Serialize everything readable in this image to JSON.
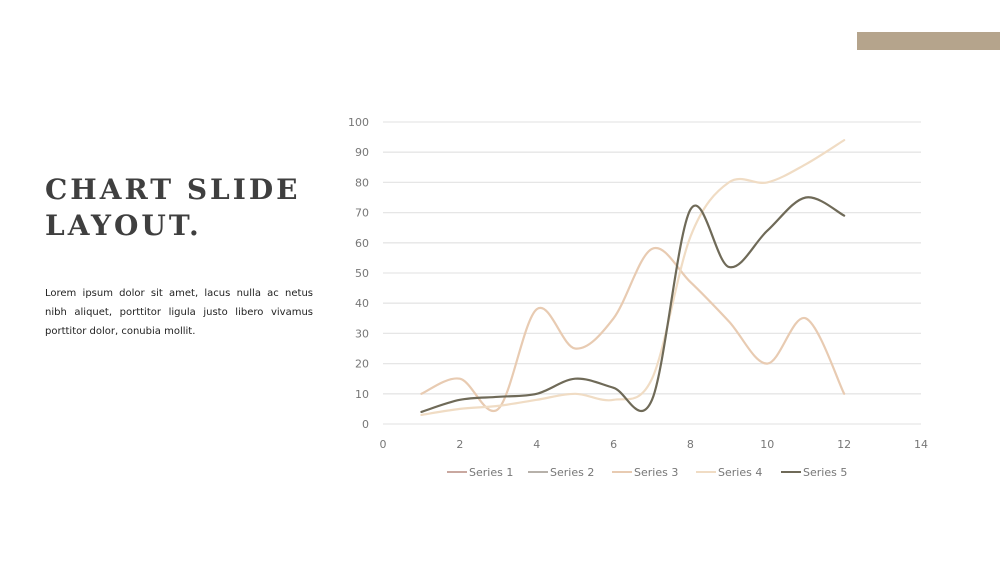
{
  "slide": {
    "title_line1": "CHART SLIDE",
    "title_line2": "LAYOUT.",
    "body": "Lorem ipsum dolor sit amet, lacus nulla ac netus nibh aliquet, porttitor ligula justo libero vivamus porttitor dolor, conubia mollit.",
    "accent_color": "#b5a48c"
  },
  "chart_data": {
    "type": "line",
    "smooth": true,
    "title": "",
    "xlabel": "",
    "ylabel": "",
    "xlim": [
      0,
      14
    ],
    "ylim": [
      0,
      100
    ],
    "xticks": [
      0,
      2,
      4,
      6,
      8,
      10,
      12,
      14
    ],
    "yticks": [
      0,
      10,
      20,
      30,
      40,
      50,
      60,
      70,
      80,
      90,
      100
    ],
    "grid": "horizontal",
    "legend": "bottom",
    "series": [
      {
        "name": "Series 1",
        "color": "#c9a8a0",
        "points": []
      },
      {
        "name": "Series 2",
        "color": "#b7b1aa",
        "points": []
      },
      {
        "name": "Series 3",
        "color": "#e8cbb2",
        "points": [
          [
            1,
            10
          ],
          [
            2,
            15
          ],
          [
            3,
            5
          ],
          [
            4,
            38
          ],
          [
            5,
            25
          ],
          [
            6,
            35
          ],
          [
            7,
            58
          ],
          [
            8,
            47
          ],
          [
            9,
            34
          ],
          [
            10,
            20
          ],
          [
            11,
            35
          ],
          [
            12,
            10
          ]
        ]
      },
      {
        "name": "Series 4",
        "color": "#f0dcc4",
        "points": [
          [
            1,
            3
          ],
          [
            2,
            5
          ],
          [
            3,
            6
          ],
          [
            4,
            8
          ],
          [
            5,
            10
          ],
          [
            6,
            8
          ],
          [
            7,
            15
          ],
          [
            8,
            62
          ],
          [
            9,
            80
          ],
          [
            10,
            80
          ],
          [
            11,
            86
          ],
          [
            12,
            94
          ]
        ]
      },
      {
        "name": "Series 5",
        "color": "#6f6a58",
        "points": [
          [
            1,
            4
          ],
          [
            2,
            8
          ],
          [
            3,
            9
          ],
          [
            4,
            10
          ],
          [
            5,
            15
          ],
          [
            6,
            12
          ],
          [
            7,
            8
          ],
          [
            8,
            71
          ],
          [
            9,
            52
          ],
          [
            10,
            64
          ],
          [
            11,
            75
          ],
          [
            12,
            69
          ]
        ]
      }
    ]
  }
}
